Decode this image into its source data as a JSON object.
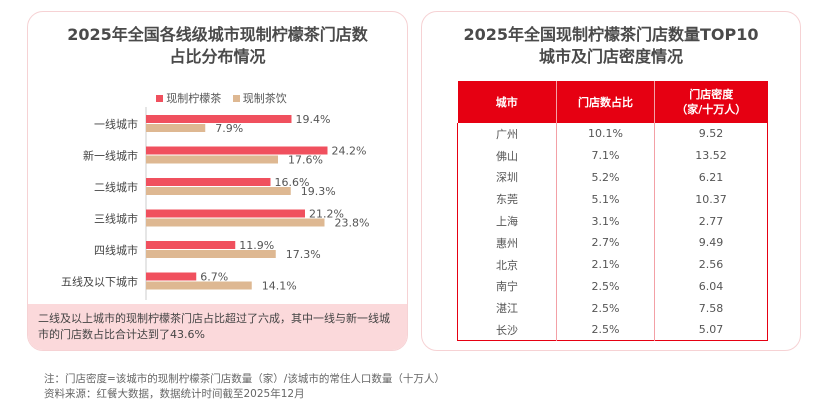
{
  "left": {
    "title_line1": "2025年全国各线级城市现制柠檬茶门店数",
    "title_line2": "占比分布情况",
    "note": "二线及以上城市的现制柠檬茶门店占比超过了六成，其中一线与新一线城市的门店数占比合计达到了43.6%"
  },
  "chart_data": {
    "type": "bar",
    "orientation": "horizontal",
    "title": "2025年全国各线级城市现制柠檬茶门店数占比分布情况",
    "categories": [
      "一线城市",
      "新一线城市",
      "二线城市",
      "三线城市",
      "四线城市",
      "五线及以下城市"
    ],
    "series": [
      {
        "name": "现制柠檬茶",
        "color": "#f0505e",
        "values": [
          19.4,
          24.2,
          16.6,
          21.2,
          11.9,
          6.7
        ]
      },
      {
        "name": "现制茶饮",
        "color": "#deb892",
        "values": [
          7.9,
          17.6,
          19.3,
          23.8,
          17.3,
          14.1
        ]
      }
    ],
    "unit": "%",
    "legend": "top"
  },
  "right": {
    "title_line1": "2025年全国现制柠檬茶门店数量TOP10",
    "title_line2": "城市及门店密度情况",
    "headers": [
      "城市",
      "门店数占比",
      "门店密度",
      "（家/十万人）"
    ],
    "rows": [
      [
        "广州",
        "10.1%",
        "9.52"
      ],
      [
        "佛山",
        "7.1%",
        "13.52"
      ],
      [
        "深圳",
        "5.2%",
        "6.21"
      ],
      [
        "东莞",
        "5.1%",
        "10.37"
      ],
      [
        "上海",
        "3.1%",
        "2.77"
      ],
      [
        "惠州",
        "2.7%",
        "9.49"
      ],
      [
        "北京",
        "2.1%",
        "2.56"
      ],
      [
        "南宁",
        "2.5%",
        "6.04"
      ],
      [
        "湛江",
        "2.5%",
        "7.58"
      ],
      [
        "长沙",
        "2.5%",
        "5.07"
      ]
    ]
  },
  "footer": {
    "note": "注：门店密度=该城市的现制柠檬茶门店数量（家）/该城市的常住人口数量（十万人）",
    "source": "资料来源：红餐大数据，数据统计时间截至2025年12月"
  },
  "watermark": "红餐 产业研究院"
}
